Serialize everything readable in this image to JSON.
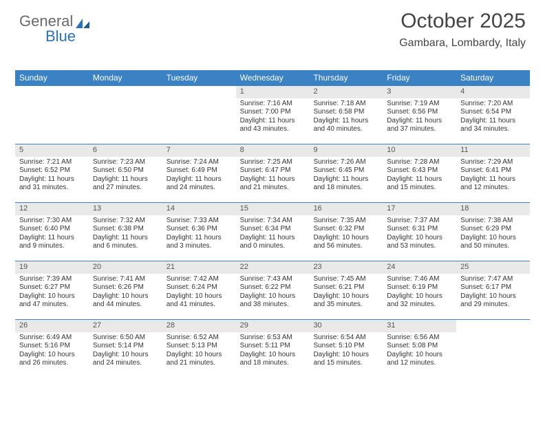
{
  "logo": {
    "part1": "General",
    "part2": "Blue"
  },
  "title": "October 2025",
  "location": "Gambara, Lombardy, Italy",
  "colors": {
    "header_bg": "#3b82c4",
    "header_text": "#ffffff",
    "day_num_bg": "#e9e9e9",
    "body_text": "#333333",
    "logo_gray": "#6a6a6a",
    "logo_blue": "#2a71b8",
    "week_border": "#3b82c4",
    "page_bg": "#ffffff"
  },
  "day_headers": [
    "Sunday",
    "Monday",
    "Tuesday",
    "Wednesday",
    "Thursday",
    "Friday",
    "Saturday"
  ],
  "weeks": [
    [
      {
        "num": "",
        "sunrise": "",
        "sunset": "",
        "daylight": ""
      },
      {
        "num": "",
        "sunrise": "",
        "sunset": "",
        "daylight": ""
      },
      {
        "num": "",
        "sunrise": "",
        "sunset": "",
        "daylight": ""
      },
      {
        "num": "1",
        "sunrise": "Sunrise: 7:16 AM",
        "sunset": "Sunset: 7:00 PM",
        "daylight": "Daylight: 11 hours and 43 minutes."
      },
      {
        "num": "2",
        "sunrise": "Sunrise: 7:18 AM",
        "sunset": "Sunset: 6:58 PM",
        "daylight": "Daylight: 11 hours and 40 minutes."
      },
      {
        "num": "3",
        "sunrise": "Sunrise: 7:19 AM",
        "sunset": "Sunset: 6:56 PM",
        "daylight": "Daylight: 11 hours and 37 minutes."
      },
      {
        "num": "4",
        "sunrise": "Sunrise: 7:20 AM",
        "sunset": "Sunset: 6:54 PM",
        "daylight": "Daylight: 11 hours and 34 minutes."
      }
    ],
    [
      {
        "num": "5",
        "sunrise": "Sunrise: 7:21 AM",
        "sunset": "Sunset: 6:52 PM",
        "daylight": "Daylight: 11 hours and 31 minutes."
      },
      {
        "num": "6",
        "sunrise": "Sunrise: 7:23 AM",
        "sunset": "Sunset: 6:50 PM",
        "daylight": "Daylight: 11 hours and 27 minutes."
      },
      {
        "num": "7",
        "sunrise": "Sunrise: 7:24 AM",
        "sunset": "Sunset: 6:49 PM",
        "daylight": "Daylight: 11 hours and 24 minutes."
      },
      {
        "num": "8",
        "sunrise": "Sunrise: 7:25 AM",
        "sunset": "Sunset: 6:47 PM",
        "daylight": "Daylight: 11 hours and 21 minutes."
      },
      {
        "num": "9",
        "sunrise": "Sunrise: 7:26 AM",
        "sunset": "Sunset: 6:45 PM",
        "daylight": "Daylight: 11 hours and 18 minutes."
      },
      {
        "num": "10",
        "sunrise": "Sunrise: 7:28 AM",
        "sunset": "Sunset: 6:43 PM",
        "daylight": "Daylight: 11 hours and 15 minutes."
      },
      {
        "num": "11",
        "sunrise": "Sunrise: 7:29 AM",
        "sunset": "Sunset: 6:41 PM",
        "daylight": "Daylight: 11 hours and 12 minutes."
      }
    ],
    [
      {
        "num": "12",
        "sunrise": "Sunrise: 7:30 AM",
        "sunset": "Sunset: 6:40 PM",
        "daylight": "Daylight: 11 hours and 9 minutes."
      },
      {
        "num": "13",
        "sunrise": "Sunrise: 7:32 AM",
        "sunset": "Sunset: 6:38 PM",
        "daylight": "Daylight: 11 hours and 6 minutes."
      },
      {
        "num": "14",
        "sunrise": "Sunrise: 7:33 AM",
        "sunset": "Sunset: 6:36 PM",
        "daylight": "Daylight: 11 hours and 3 minutes."
      },
      {
        "num": "15",
        "sunrise": "Sunrise: 7:34 AM",
        "sunset": "Sunset: 6:34 PM",
        "daylight": "Daylight: 11 hours and 0 minutes."
      },
      {
        "num": "16",
        "sunrise": "Sunrise: 7:35 AM",
        "sunset": "Sunset: 6:32 PM",
        "daylight": "Daylight: 10 hours and 56 minutes."
      },
      {
        "num": "17",
        "sunrise": "Sunrise: 7:37 AM",
        "sunset": "Sunset: 6:31 PM",
        "daylight": "Daylight: 10 hours and 53 minutes."
      },
      {
        "num": "18",
        "sunrise": "Sunrise: 7:38 AM",
        "sunset": "Sunset: 6:29 PM",
        "daylight": "Daylight: 10 hours and 50 minutes."
      }
    ],
    [
      {
        "num": "19",
        "sunrise": "Sunrise: 7:39 AM",
        "sunset": "Sunset: 6:27 PM",
        "daylight": "Daylight: 10 hours and 47 minutes."
      },
      {
        "num": "20",
        "sunrise": "Sunrise: 7:41 AM",
        "sunset": "Sunset: 6:26 PM",
        "daylight": "Daylight: 10 hours and 44 minutes."
      },
      {
        "num": "21",
        "sunrise": "Sunrise: 7:42 AM",
        "sunset": "Sunset: 6:24 PM",
        "daylight": "Daylight: 10 hours and 41 minutes."
      },
      {
        "num": "22",
        "sunrise": "Sunrise: 7:43 AM",
        "sunset": "Sunset: 6:22 PM",
        "daylight": "Daylight: 10 hours and 38 minutes."
      },
      {
        "num": "23",
        "sunrise": "Sunrise: 7:45 AM",
        "sunset": "Sunset: 6:21 PM",
        "daylight": "Daylight: 10 hours and 35 minutes."
      },
      {
        "num": "24",
        "sunrise": "Sunrise: 7:46 AM",
        "sunset": "Sunset: 6:19 PM",
        "daylight": "Daylight: 10 hours and 32 minutes."
      },
      {
        "num": "25",
        "sunrise": "Sunrise: 7:47 AM",
        "sunset": "Sunset: 6:17 PM",
        "daylight": "Daylight: 10 hours and 29 minutes."
      }
    ],
    [
      {
        "num": "26",
        "sunrise": "Sunrise: 6:49 AM",
        "sunset": "Sunset: 5:16 PM",
        "daylight": "Daylight: 10 hours and 26 minutes."
      },
      {
        "num": "27",
        "sunrise": "Sunrise: 6:50 AM",
        "sunset": "Sunset: 5:14 PM",
        "daylight": "Daylight: 10 hours and 24 minutes."
      },
      {
        "num": "28",
        "sunrise": "Sunrise: 6:52 AM",
        "sunset": "Sunset: 5:13 PM",
        "daylight": "Daylight: 10 hours and 21 minutes."
      },
      {
        "num": "29",
        "sunrise": "Sunrise: 6:53 AM",
        "sunset": "Sunset: 5:11 PM",
        "daylight": "Daylight: 10 hours and 18 minutes."
      },
      {
        "num": "30",
        "sunrise": "Sunrise: 6:54 AM",
        "sunset": "Sunset: 5:10 PM",
        "daylight": "Daylight: 10 hours and 15 minutes."
      },
      {
        "num": "31",
        "sunrise": "Sunrise: 6:56 AM",
        "sunset": "Sunset: 5:08 PM",
        "daylight": "Daylight: 10 hours and 12 minutes."
      },
      {
        "num": "",
        "sunrise": "",
        "sunset": "",
        "daylight": ""
      }
    ]
  ]
}
